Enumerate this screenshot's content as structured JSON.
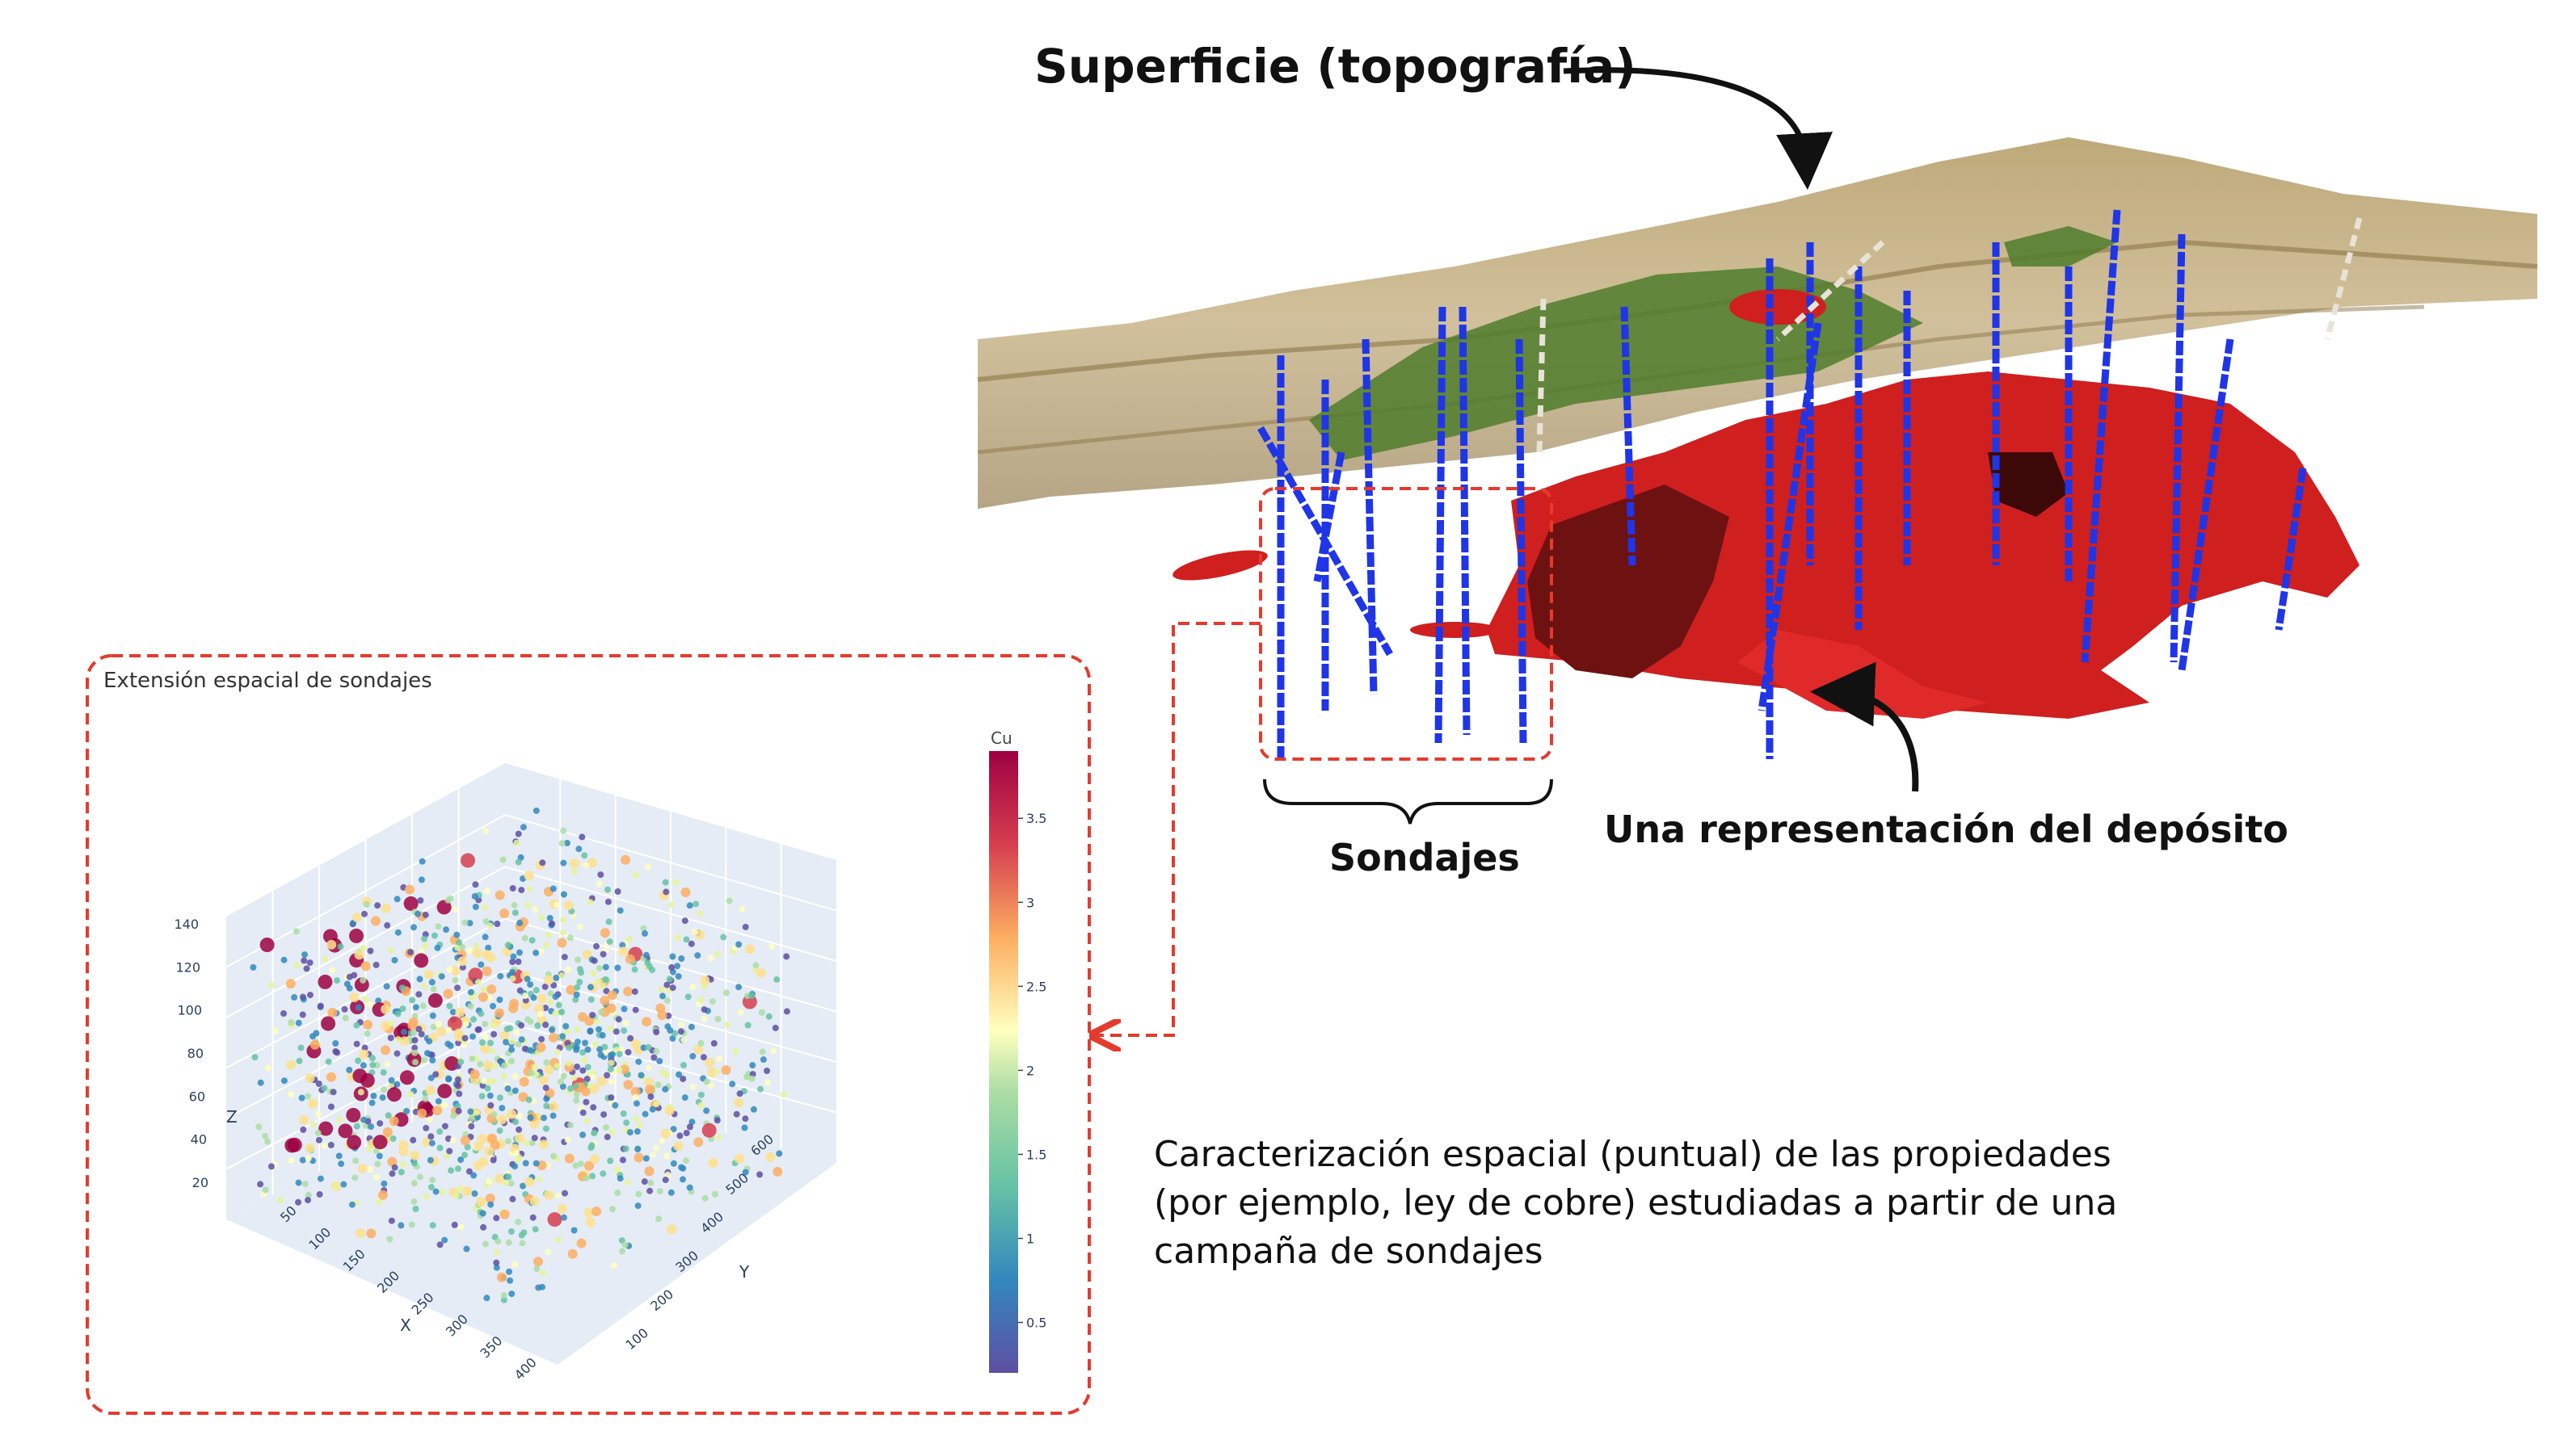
{
  "annotations": {
    "surface_label": "Superficie (topografía)",
    "deposit_label": "Una representación del depósito",
    "drillholes_label": "Sondajes",
    "caption_lines": [
      "Caracterización espacial (puntual) de las propiedades",
      "(por ejemplo, ley de cobre) estudiadas a partir de una",
      "campaña de sondajes"
    ]
  },
  "colors": {
    "terrain": "#b49b67",
    "vegetation": "#4f7d2c",
    "deposit": "#cf1f1f",
    "drillhole": "#1f35e6",
    "dashed_red": "#e53a2e"
  },
  "chart_data": {
    "type": "scatter",
    "title": "Extensión espacial de sondajes",
    "xlabel": "X",
    "ylabel": "Y",
    "zlabel": "Z",
    "x_ticks": [
      "50",
      "100",
      "150",
      "200",
      "250",
      "300",
      "350",
      "400"
    ],
    "y_ticks": [
      "100",
      "200",
      "300",
      "400",
      "500",
      "600"
    ],
    "z_ticks": [
      "20",
      "40",
      "60",
      "80",
      "100",
      "120",
      "140"
    ],
    "colorbar": {
      "title": "Cu",
      "ticks": [
        "0.5",
        "1",
        "1.5",
        "2",
        "2.5",
        "3",
        "3.5"
      ],
      "range": [
        0.2,
        3.9
      ],
      "colorscale": "Spectral_r"
    },
    "grid": true
  }
}
